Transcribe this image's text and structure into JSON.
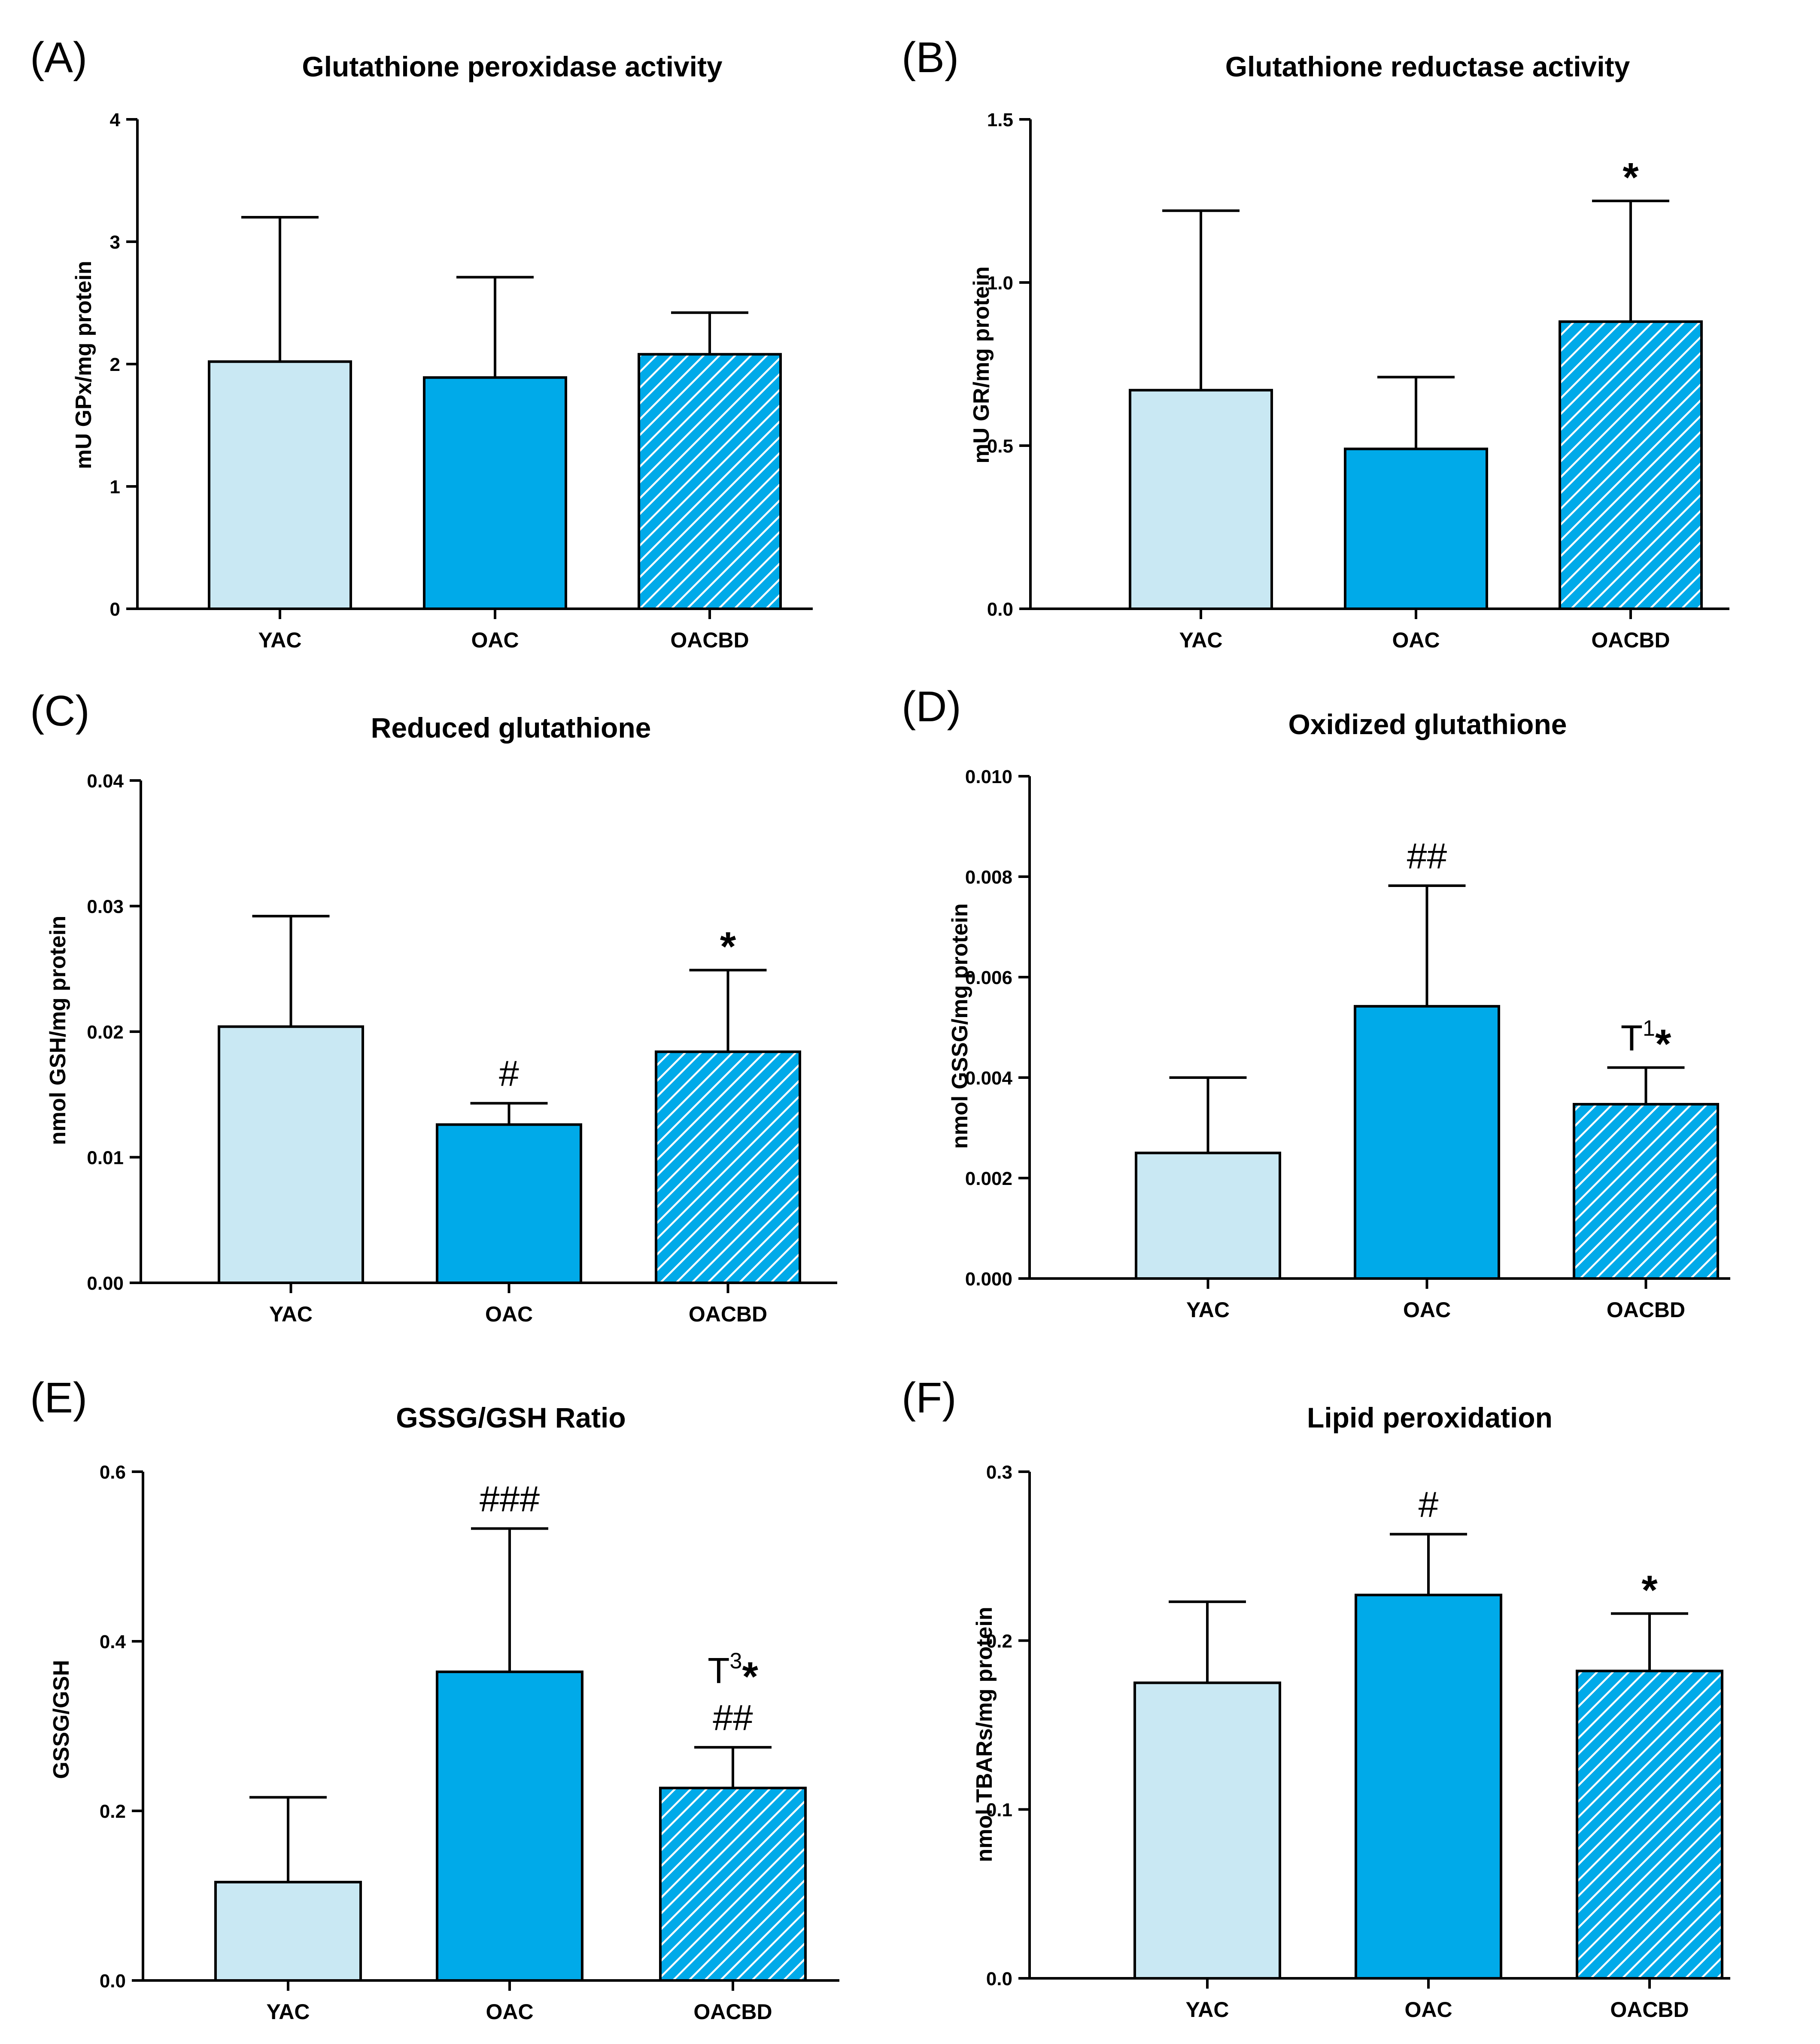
{
  "colors": {
    "YAC": "#c9e8f3",
    "OAC": "#00aae9",
    "OACBD_hatch_bg": "#00aae9",
    "OACBD_hatch_line": "#ffffff",
    "stroke": "#000000"
  },
  "chart_data": [
    {
      "panel": "(A)",
      "type": "bar",
      "title": "Glutathione peroxidase activity",
      "ylabel": "mU GPx/mg protein",
      "xlabel": "",
      "categories": [
        "YAC",
        "OAC",
        "OACBD"
      ],
      "values": [
        2.02,
        1.89,
        2.08
      ],
      "errors": [
        1.18,
        0.82,
        0.34
      ],
      "ylim": [
        0,
        4
      ],
      "yticks": [
        0,
        1,
        2,
        3,
        4
      ],
      "ytick_labels": [
        "0",
        "1",
        "2",
        "3",
        "4"
      ],
      "annotations": [
        {
          "main": "",
          "sup": "",
          "star": false
        },
        {
          "main": "",
          "sup": "",
          "star": false
        },
        {
          "main": "",
          "sup": "",
          "star": false
        }
      ]
    },
    {
      "panel": "(B)",
      "type": "bar",
      "title": "Glutathione reductase activity",
      "ylabel": "mU GR/mg protein",
      "xlabel": "",
      "categories": [
        "YAC",
        "OAC",
        "OACBD"
      ],
      "values": [
        0.67,
        0.49,
        0.88
      ],
      "errors": [
        0.55,
        0.22,
        0.37
      ],
      "ylim": [
        0,
        1.5
      ],
      "yticks": [
        0,
        0.5,
        1.0,
        1.5
      ],
      "ytick_labels": [
        "0.0",
        "0.5",
        "1.0",
        "1.5"
      ],
      "annotations": [
        {
          "main": "",
          "sup": "",
          "star": false
        },
        {
          "main": "",
          "sup": "",
          "star": false
        },
        {
          "main": "",
          "sup": "",
          "star": true
        }
      ]
    },
    {
      "panel": "(C)",
      "type": "bar",
      "title": "Reduced glutathione",
      "ylabel": "nmol GSH/mg protein",
      "xlabel": "",
      "categories": [
        "YAC",
        "OAC",
        "OACBD"
      ],
      "values": [
        0.0204,
        0.0126,
        0.0184
      ],
      "errors": [
        0.0088,
        0.0017,
        0.0065
      ],
      "ylim": [
        0,
        0.04
      ],
      "yticks": [
        0,
        0.01,
        0.02,
        0.03,
        0.04
      ],
      "ytick_labels": [
        "0.00",
        "0.01",
        "0.02",
        "0.03",
        "0.04"
      ],
      "annotations": [
        {
          "main": "",
          "sup": "",
          "star": false
        },
        {
          "main": "#",
          "sup": "",
          "star": false
        },
        {
          "main": "",
          "sup": "",
          "star": true
        }
      ]
    },
    {
      "panel": "(D)",
      "type": "bar",
      "title": "Oxidized glutathione",
      "ylabel": "nmol GSSG/mg protein",
      "xlabel": "",
      "categories": [
        "YAC",
        "OAC",
        "OACBD"
      ],
      "values": [
        0.0025,
        0.00542,
        0.00347
      ],
      "errors": [
        0.0015,
        0.0024,
        0.00073
      ],
      "ylim": [
        0,
        0.01
      ],
      "yticks": [
        0,
        0.002,
        0.004,
        0.006,
        0.008,
        0.01
      ],
      "ytick_labels": [
        "0.000",
        "0.002",
        "0.004",
        "0.006",
        "0.008",
        "0.010"
      ],
      "annotations": [
        {
          "main": "",
          "sup": "",
          "star": false
        },
        {
          "main": "##",
          "sup": "",
          "star": false
        },
        {
          "main": "T",
          "sup": "1",
          "star": true
        }
      ]
    },
    {
      "panel": "(E)",
      "type": "bar",
      "title": "GSSG/GSH Ratio",
      "ylabel": "GSSG/GSH",
      "xlabel": "",
      "categories": [
        "YAC",
        "OAC",
        "OACBD"
      ],
      "values": [
        0.116,
        0.364,
        0.227
      ],
      "errors": [
        0.1,
        0.169,
        0.048
      ],
      "ylim": [
        0,
        0.6
      ],
      "yticks": [
        0,
        0.2,
        0.4,
        0.6
      ],
      "ytick_labels": [
        "0.0",
        "0.2",
        "0.4",
        "0.6"
      ],
      "annotations": [
        {
          "main": "",
          "sup": "",
          "star": false
        },
        {
          "main": "###",
          "sup": "",
          "star": false
        },
        {
          "main": "##",
          "sup": "",
          "star": false,
          "upper": {
            "main": "T",
            "sup": "3",
            "star": true
          }
        }
      ]
    },
    {
      "panel": "(F)",
      "type": "bar",
      "title": "Lipid peroxidation",
      "ylabel": "nmol TBARs/mg protein",
      "xlabel": "",
      "categories": [
        "YAC",
        "OAC",
        "OACBD"
      ],
      "values": [
        0.175,
        0.227,
        0.182
      ],
      "errors": [
        0.048,
        0.036,
        0.034
      ],
      "ylim": [
        0,
        0.3
      ],
      "yticks": [
        0,
        0.1,
        0.2,
        0.3
      ],
      "ytick_labels": [
        "0.0",
        "0.1",
        "0.2",
        "0.3"
      ],
      "annotations": [
        {
          "main": "",
          "sup": "",
          "star": false
        },
        {
          "main": "#",
          "sup": "",
          "star": false
        },
        {
          "main": "",
          "sup": "",
          "star": true
        }
      ]
    }
  ]
}
